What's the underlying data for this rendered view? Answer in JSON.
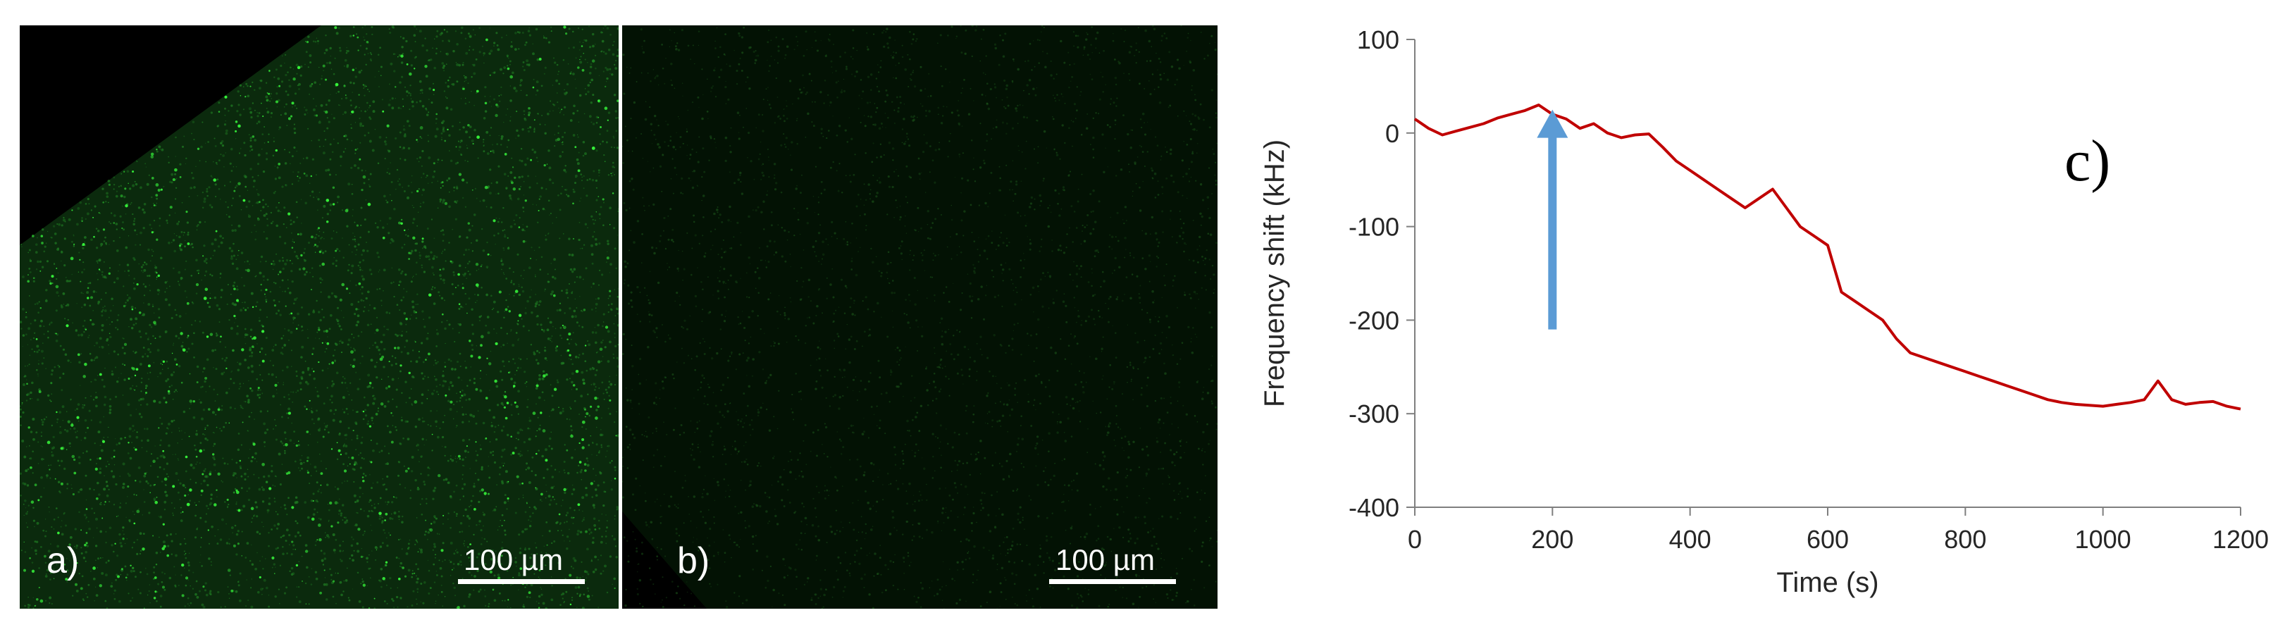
{
  "panels": {
    "a": {
      "label": "a)",
      "scale_bar": "100 µm",
      "tint": "#39ff3d"
    },
    "b": {
      "label": "b)",
      "scale_bar": "100 µm",
      "tint": "#1d5a1c"
    }
  },
  "chart_data": {
    "type": "line",
    "title": "",
    "panel_label": "c)",
    "xlabel": "Time (s)",
    "ylabel": "Frequency shift (kHz)",
    "xlim": [
      0,
      1200
    ],
    "ylim": [
      -400,
      100
    ],
    "xticks": [
      0,
      200,
      400,
      600,
      800,
      1000,
      1200
    ],
    "yticks": [
      100,
      0,
      -100,
      -200,
      -300,
      -400
    ],
    "grid": false,
    "line_color": "#c00000",
    "annotation": {
      "type": "arrow",
      "x": 200,
      "y_from": -210,
      "y_to": 25,
      "color": "#5b9bd5"
    },
    "series": [
      {
        "x": [
          0,
          20,
          40,
          60,
          80,
          100,
          120,
          140,
          160,
          180,
          200,
          220,
          240,
          260,
          280,
          300,
          320,
          340,
          360,
          380,
          400,
          420,
          440,
          460,
          480,
          500,
          520,
          540,
          560,
          580,
          600,
          620,
          640,
          660,
          680,
          700,
          720,
          740,
          760,
          780,
          800,
          820,
          840,
          860,
          880,
          900,
          920,
          940,
          960,
          980,
          1000,
          1020,
          1040,
          1060,
          1080,
          1100,
          1120,
          1140,
          1160,
          1180,
          1200
        ],
        "values": [
          15,
          5,
          -2,
          2,
          6,
          10,
          16,
          20,
          24,
          30,
          20,
          15,
          5,
          10,
          0,
          -5,
          -2,
          -1,
          -15,
          -30,
          -40,
          -50,
          -60,
          -70,
          -80,
          -70,
          -60,
          -80,
          -100,
          -110,
          -120,
          -170,
          -180,
          -190,
          -200,
          -220,
          -235,
          -240,
          -245,
          -250,
          -255,
          -260,
          -265,
          -270,
          -275,
          -280,
          -285,
          -288,
          -290,
          -291,
          -292,
          -290,
          -288,
          -285,
          -265,
          -285,
          -290,
          -288,
          -287,
          -292,
          -295
        ]
      }
    ]
  }
}
